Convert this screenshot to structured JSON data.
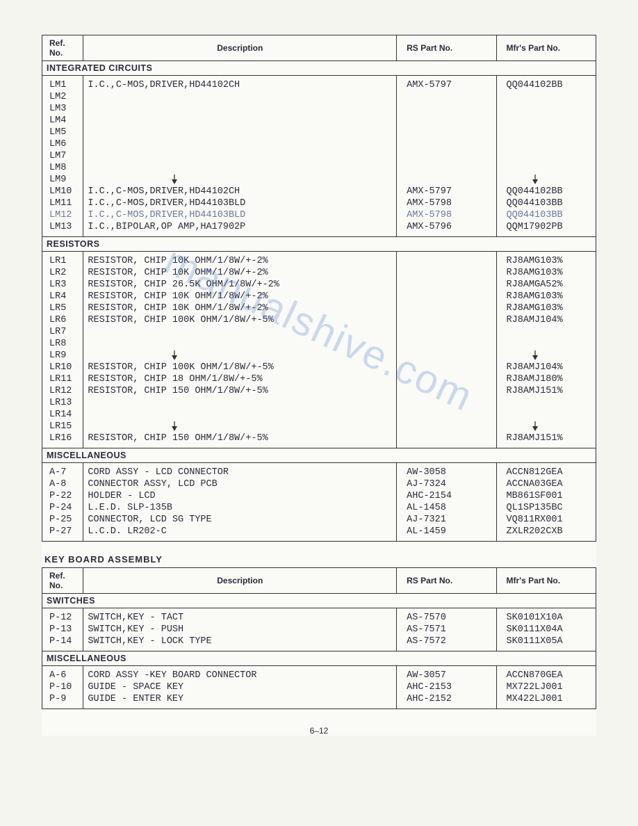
{
  "watermark": "manualshive.com",
  "page_number": "6–12",
  "table1": {
    "headers": [
      "Ref. No.",
      "Description",
      "RS Part No.",
      "Mfr's Part No."
    ],
    "sections": [
      {
        "title": "INTEGRATED CIRCUITS",
        "rows": [
          {
            "ref": "LM1",
            "desc": "I.C.,C-MOS,DRIVER,HD44102CH",
            "rs": "AMX-5797",
            "mfr": "QQ044102BB"
          },
          {
            "ref": "LM2",
            "desc": "",
            "rs": "",
            "mfr": ""
          },
          {
            "ref": "LM3",
            "desc": "",
            "rs": "",
            "mfr": ""
          },
          {
            "ref": "LM4",
            "desc": "",
            "rs": "",
            "mfr": ""
          },
          {
            "ref": "LM5",
            "desc": "",
            "rs": "",
            "mfr": ""
          },
          {
            "ref": "LM6",
            "desc": "",
            "rs": "",
            "mfr": ""
          },
          {
            "ref": "LM7",
            "desc": "",
            "rs": "",
            "mfr": ""
          },
          {
            "ref": "LM8",
            "desc": "",
            "rs": "",
            "mfr": ""
          },
          {
            "ref": "LM9",
            "desc": "",
            "rs": "",
            "mfr": "",
            "arrow_desc": true,
            "arrow_mfr": true
          },
          {
            "ref": "LM10",
            "desc": "I.C.,C-MOS,DRIVER,HD44102CH",
            "rs": "AMX-5797",
            "mfr": "QQ044102BB"
          },
          {
            "ref": "LM11",
            "desc": "I.C.,C-MOS,DRIVER,HD44103BLD",
            "rs": "AMX-5798",
            "mfr": "QQ044103BB"
          },
          {
            "ref": "LM12",
            "desc": "I.C.,C-MOS,DRIVER,HD44103BLD",
            "rs": "AMX-5798",
            "mfr": "QQ044103BB",
            "faded": true
          },
          {
            "ref": "LM13",
            "desc": "I.C.,BIPOLAR,OP AMP,HA17902P",
            "rs": "AMX-5796",
            "mfr": "QQM17902PB"
          }
        ]
      },
      {
        "title": "RESISTORS",
        "rows": [
          {
            "ref": "LR1",
            "desc": "RESISTOR, CHIP 10K OHM/1/8W/+-2%",
            "rs": "",
            "mfr": "RJ8AMG103%"
          },
          {
            "ref": "LR2",
            "desc": "RESISTOR, CHIP 10K OHM/1/8W/+-2%",
            "rs": "",
            "mfr": "RJ8AMG103%"
          },
          {
            "ref": "LR3",
            "desc": "RESISTOR, CHIP 26.5K OHM/1/8W/+-2%",
            "rs": "",
            "mfr": "RJ8AMGA52%"
          },
          {
            "ref": "LR4",
            "desc": "RESISTOR, CHIP 10K OHM/1/8W/+-2%",
            "rs": "",
            "mfr": "RJ8AMG103%"
          },
          {
            "ref": "LR5",
            "desc": "RESISTOR, CHIP 10K OHM/1/8W/+-2%",
            "rs": "",
            "mfr": "RJ8AMG103%"
          },
          {
            "ref": "LR6",
            "desc": "RESISTOR, CHIP 100K OHM/1/8W/+-5%",
            "rs": "",
            "mfr": "RJ8AMJ104%"
          },
          {
            "ref": "LR7",
            "desc": "",
            "rs": "",
            "mfr": ""
          },
          {
            "ref": "LR8",
            "desc": "",
            "rs": "",
            "mfr": ""
          },
          {
            "ref": "LR9",
            "desc": "",
            "rs": "",
            "mfr": "",
            "arrow_desc": true,
            "arrow_mfr": true
          },
          {
            "ref": "LR10",
            "desc": "RESISTOR, CHIP 100K OHM/1/8W/+-5%",
            "rs": "",
            "mfr": "RJ8AMJ104%"
          },
          {
            "ref": "LR11",
            "desc": "RESISTOR, CHIP 18 OHM/1/8W/+-5%",
            "rs": "",
            "mfr": "RJ8AMJ180%"
          },
          {
            "ref": "LR12",
            "desc": "RESISTOR, CHIP 150 OHM/1/8W/+-5%",
            "rs": "",
            "mfr": "RJ8AMJ151%"
          },
          {
            "ref": "LR13",
            "desc": "",
            "rs": "",
            "mfr": ""
          },
          {
            "ref": "LR14",
            "desc": "",
            "rs": "",
            "mfr": ""
          },
          {
            "ref": "LR15",
            "desc": "",
            "rs": "",
            "mfr": "",
            "arrow_desc": true,
            "arrow_mfr": true
          },
          {
            "ref": "LR16",
            "desc": "RESISTOR, CHIP 150 OHM/1/8W/+-5%",
            "rs": "",
            "mfr": "RJ8AMJ151%"
          }
        ]
      },
      {
        "title": "MISCELLANEOUS",
        "rows": [
          {
            "ref": "A-7",
            "desc": "CORD ASSY - LCD CONNECTOR",
            "rs": "AW-3058",
            "mfr": "ACCN812GEA"
          },
          {
            "ref": "A-8",
            "desc": "CONNECTOR ASSY, LCD PCB",
            "rs": "AJ-7324",
            "mfr": "ACCNA03GEA"
          },
          {
            "ref": "P-22",
            "desc": "HOLDER - LCD",
            "rs": "AHC-2154",
            "mfr": "MB861SF001"
          },
          {
            "ref": "P-24",
            "desc": "L.E.D.  SLP-135B",
            "rs": "AL-1458",
            "mfr": "QL1SP135BC"
          },
          {
            "ref": "P-25",
            "desc": "CONNECTOR, LCD SG TYPE",
            "rs": "AJ-7321",
            "mfr": "VQ811RX001"
          },
          {
            "ref": "P-27",
            "desc": "L.C.D. LR202-C",
            "rs": "AL-1459",
            "mfr": "ZXLR202CXB"
          }
        ]
      }
    ]
  },
  "table2": {
    "title": "KEY BOARD ASSEMBLY",
    "headers": [
      "Ref. No.",
      "Description",
      "RS Part No.",
      "Mfr's Part No."
    ],
    "sections": [
      {
        "title": "SWITCHES",
        "rows": [
          {
            "ref": "P-12",
            "desc": "SWITCH,KEY - TACT",
            "rs": "AS-7570",
            "mfr": "SK0101X10A"
          },
          {
            "ref": "P-13",
            "desc": "SWITCH,KEY - PUSH",
            "rs": "AS-7571",
            "mfr": "SK0111X04A"
          },
          {
            "ref": "P-14",
            "desc": "SWITCH,KEY - LOCK TYPE",
            "rs": "AS-7572",
            "mfr": "SK0111X05A"
          }
        ]
      },
      {
        "title": "MISCELLANEOUS",
        "rows": [
          {
            "ref": "A-6",
            "desc": "CORD ASSY -KEY BOARD CONNECTOR",
            "rs": "AW-3057",
            "mfr": "ACCN870GEA"
          },
          {
            "ref": "P-10",
            "desc": "GUIDE - SPACE KEY",
            "rs": "AHC-2153",
            "mfr": "MX722LJ001"
          },
          {
            "ref": "P-9",
            "desc": "GUIDE - ENTER KEY",
            "rs": "AHC-2152",
            "mfr": "MX422LJ001"
          }
        ]
      }
    ]
  },
  "colors": {
    "text": "#2a2a3a",
    "border": "#333333",
    "background": "#fafaf7",
    "watermark": "rgba(80,130,210,0.28)",
    "faded": "#6a7a9a"
  }
}
